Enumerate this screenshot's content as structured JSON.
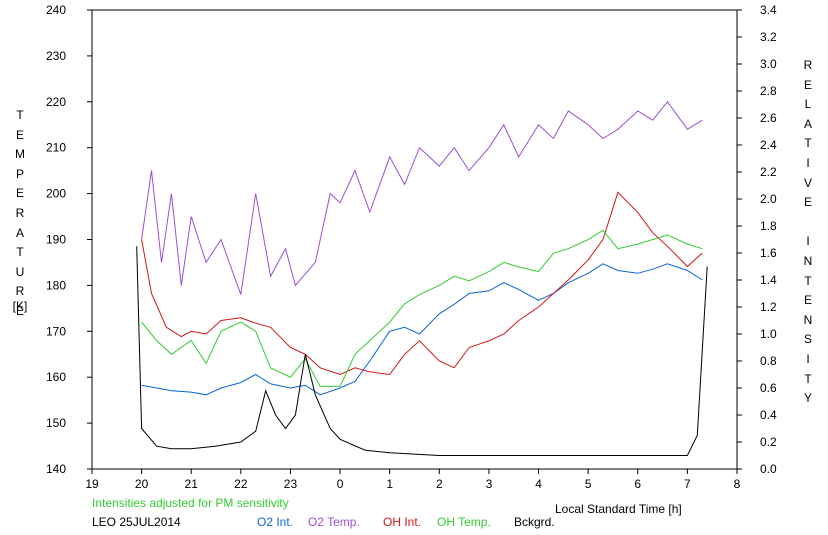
{
  "chart_data": {
    "type": "line",
    "station_label": "LEO 25JUL2014",
    "note": "Intensities adjusted for PM sensitivity",
    "xlabel": "Local Standard Time [h]",
    "x_tick_labels": [
      "19",
      "20",
      "21",
      "22",
      "23",
      "0",
      "1",
      "2",
      "3",
      "4",
      "5",
      "6",
      "7",
      "8"
    ],
    "x_tick_positions": [
      19,
      20,
      21,
      22,
      23,
      24,
      25,
      26,
      27,
      28,
      29,
      30,
      31,
      32
    ],
    "xlim": [
      19,
      32
    ],
    "ylabel_left": [
      "T",
      "E",
      "M",
      "P",
      "E",
      "R",
      "A",
      "T",
      "U",
      "R",
      "E"
    ],
    "ylabel_left_unit": "[K]",
    "ylim_left": [
      140,
      240
    ],
    "yticks_left": [
      140,
      150,
      160,
      170,
      180,
      190,
      200,
      210,
      220,
      230,
      240
    ],
    "ylabel_right": [
      "R",
      "E",
      "L",
      "A",
      "T",
      "I",
      "V",
      "E",
      "",
      "I",
      "N",
      "T",
      "E",
      "N",
      "S",
      "I",
      "T",
      "Y"
    ],
    "ylim_right": [
      0.0,
      3.4
    ],
    "yticks_right": [
      "0.0",
      "0.2",
      "0.4",
      "0.6",
      "0.8",
      "1.0",
      "1.2",
      "1.4",
      "1.6",
      "1.8",
      "2.0",
      "2.2",
      "2.4",
      "2.6",
      "2.8",
      "3.0",
      "3.2",
      "3.4"
    ],
    "series": [
      {
        "name": "O2 Int.",
        "axis": "right",
        "color": "#0a64dc",
        "x": [
          20.0,
          20.3,
          20.6,
          21.0,
          21.3,
          21.6,
          22.0,
          22.3,
          22.6,
          23.0,
          23.3,
          23.6,
          24.0,
          24.3,
          24.6,
          25.0,
          25.3,
          25.6,
          26.0,
          26.3,
          26.6,
          27.0,
          27.3,
          27.6,
          28.0,
          28.3,
          28.6,
          29.0,
          29.3,
          29.6,
          30.0,
          30.3,
          30.6,
          31.0,
          31.3
        ],
        "y": [
          0.62,
          0.6,
          0.58,
          0.57,
          0.55,
          0.6,
          0.64,
          0.7,
          0.63,
          0.6,
          0.62,
          0.55,
          0.6,
          0.65,
          0.8,
          1.02,
          1.05,
          1.0,
          1.15,
          1.22,
          1.3,
          1.32,
          1.38,
          1.33,
          1.25,
          1.3,
          1.38,
          1.45,
          1.52,
          1.47,
          1.45,
          1.48,
          1.52,
          1.47,
          1.4
        ]
      },
      {
        "name": "O2 Temp.",
        "axis": "left",
        "color": "#9b4fd6",
        "x": [
          20.0,
          20.2,
          20.4,
          20.6,
          20.8,
          21.0,
          21.3,
          21.6,
          22.0,
          22.3,
          22.6,
          22.9,
          23.1,
          23.5,
          23.8,
          24.0,
          24.3,
          24.6,
          25.0,
          25.3,
          25.6,
          26.0,
          26.3,
          26.6,
          27.0,
          27.3,
          27.6,
          28.0,
          28.3,
          28.6,
          29.0,
          29.3,
          29.6,
          30.0,
          30.3,
          30.6,
          31.0,
          31.3
        ],
        "y": [
          190,
          205,
          185,
          200,
          180,
          195,
          185,
          190,
          178,
          200,
          182,
          188,
          180,
          185,
          200,
          198,
          205,
          196,
          208,
          202,
          210,
          206,
          210,
          205,
          210,
          215,
          208,
          215,
          212,
          218,
          215,
          212,
          214,
          218,
          216,
          220,
          214,
          216
        ]
      },
      {
        "name": "OH Int.",
        "axis": "right",
        "color": "#d41414",
        "x": [
          20.0,
          20.2,
          20.5,
          20.8,
          21.0,
          21.3,
          21.6,
          22.0,
          22.3,
          22.6,
          23.0,
          23.3,
          23.6,
          24.0,
          24.3,
          24.6,
          25.0,
          25.3,
          25.6,
          26.0,
          26.3,
          26.6,
          27.0,
          27.3,
          27.6,
          28.0,
          28.3,
          28.6,
          29.0,
          29.3,
          29.6,
          30.0,
          30.3,
          30.6,
          31.0,
          31.3
        ],
        "y": [
          1.7,
          1.3,
          1.05,
          0.98,
          1.02,
          1.0,
          1.1,
          1.12,
          1.08,
          1.05,
          0.9,
          0.85,
          0.75,
          0.7,
          0.75,
          0.72,
          0.7,
          0.85,
          0.95,
          0.8,
          0.75,
          0.9,
          0.95,
          1.0,
          1.1,
          1.2,
          1.3,
          1.4,
          1.55,
          1.7,
          2.05,
          1.9,
          1.75,
          1.65,
          1.5,
          1.6
        ]
      },
      {
        "name": "OH Temp.",
        "axis": "left",
        "color": "#33cc33",
        "x": [
          20.0,
          20.3,
          20.6,
          21.0,
          21.3,
          21.6,
          22.0,
          22.3,
          22.6,
          23.0,
          23.3,
          23.6,
          24.0,
          24.3,
          24.6,
          25.0,
          25.3,
          25.6,
          26.0,
          26.3,
          26.6,
          27.0,
          27.3,
          27.6,
          28.0,
          28.3,
          28.6,
          29.0,
          29.3,
          29.6,
          30.0,
          30.3,
          30.6,
          31.0,
          31.3
        ],
        "y": [
          172,
          168,
          165,
          168,
          163,
          170,
          172,
          170,
          162,
          160,
          164,
          158,
          158,
          165,
          168,
          172,
          176,
          178,
          180,
          182,
          181,
          183,
          185,
          184,
          183,
          187,
          188,
          190,
          192,
          188,
          189,
          190,
          191,
          189,
          188
        ]
      },
      {
        "name": "Bckgrd.",
        "axis": "right",
        "color": "#000000",
        "x": [
          19.9,
          20.0,
          20.3,
          20.6,
          21.0,
          21.5,
          22.0,
          22.3,
          22.5,
          22.7,
          22.9,
          23.1,
          23.3,
          23.5,
          23.8,
          24.0,
          24.5,
          25.0,
          26.0,
          27.0,
          28.0,
          29.0,
          30.0,
          31.0,
          31.2,
          31.4
        ],
        "y": [
          1.65,
          0.3,
          0.17,
          0.15,
          0.15,
          0.17,
          0.2,
          0.28,
          0.58,
          0.4,
          0.3,
          0.4,
          0.85,
          0.55,
          0.3,
          0.22,
          0.14,
          0.12,
          0.1,
          0.1,
          0.1,
          0.1,
          0.1,
          0.1,
          0.25,
          1.5
        ]
      }
    ]
  }
}
